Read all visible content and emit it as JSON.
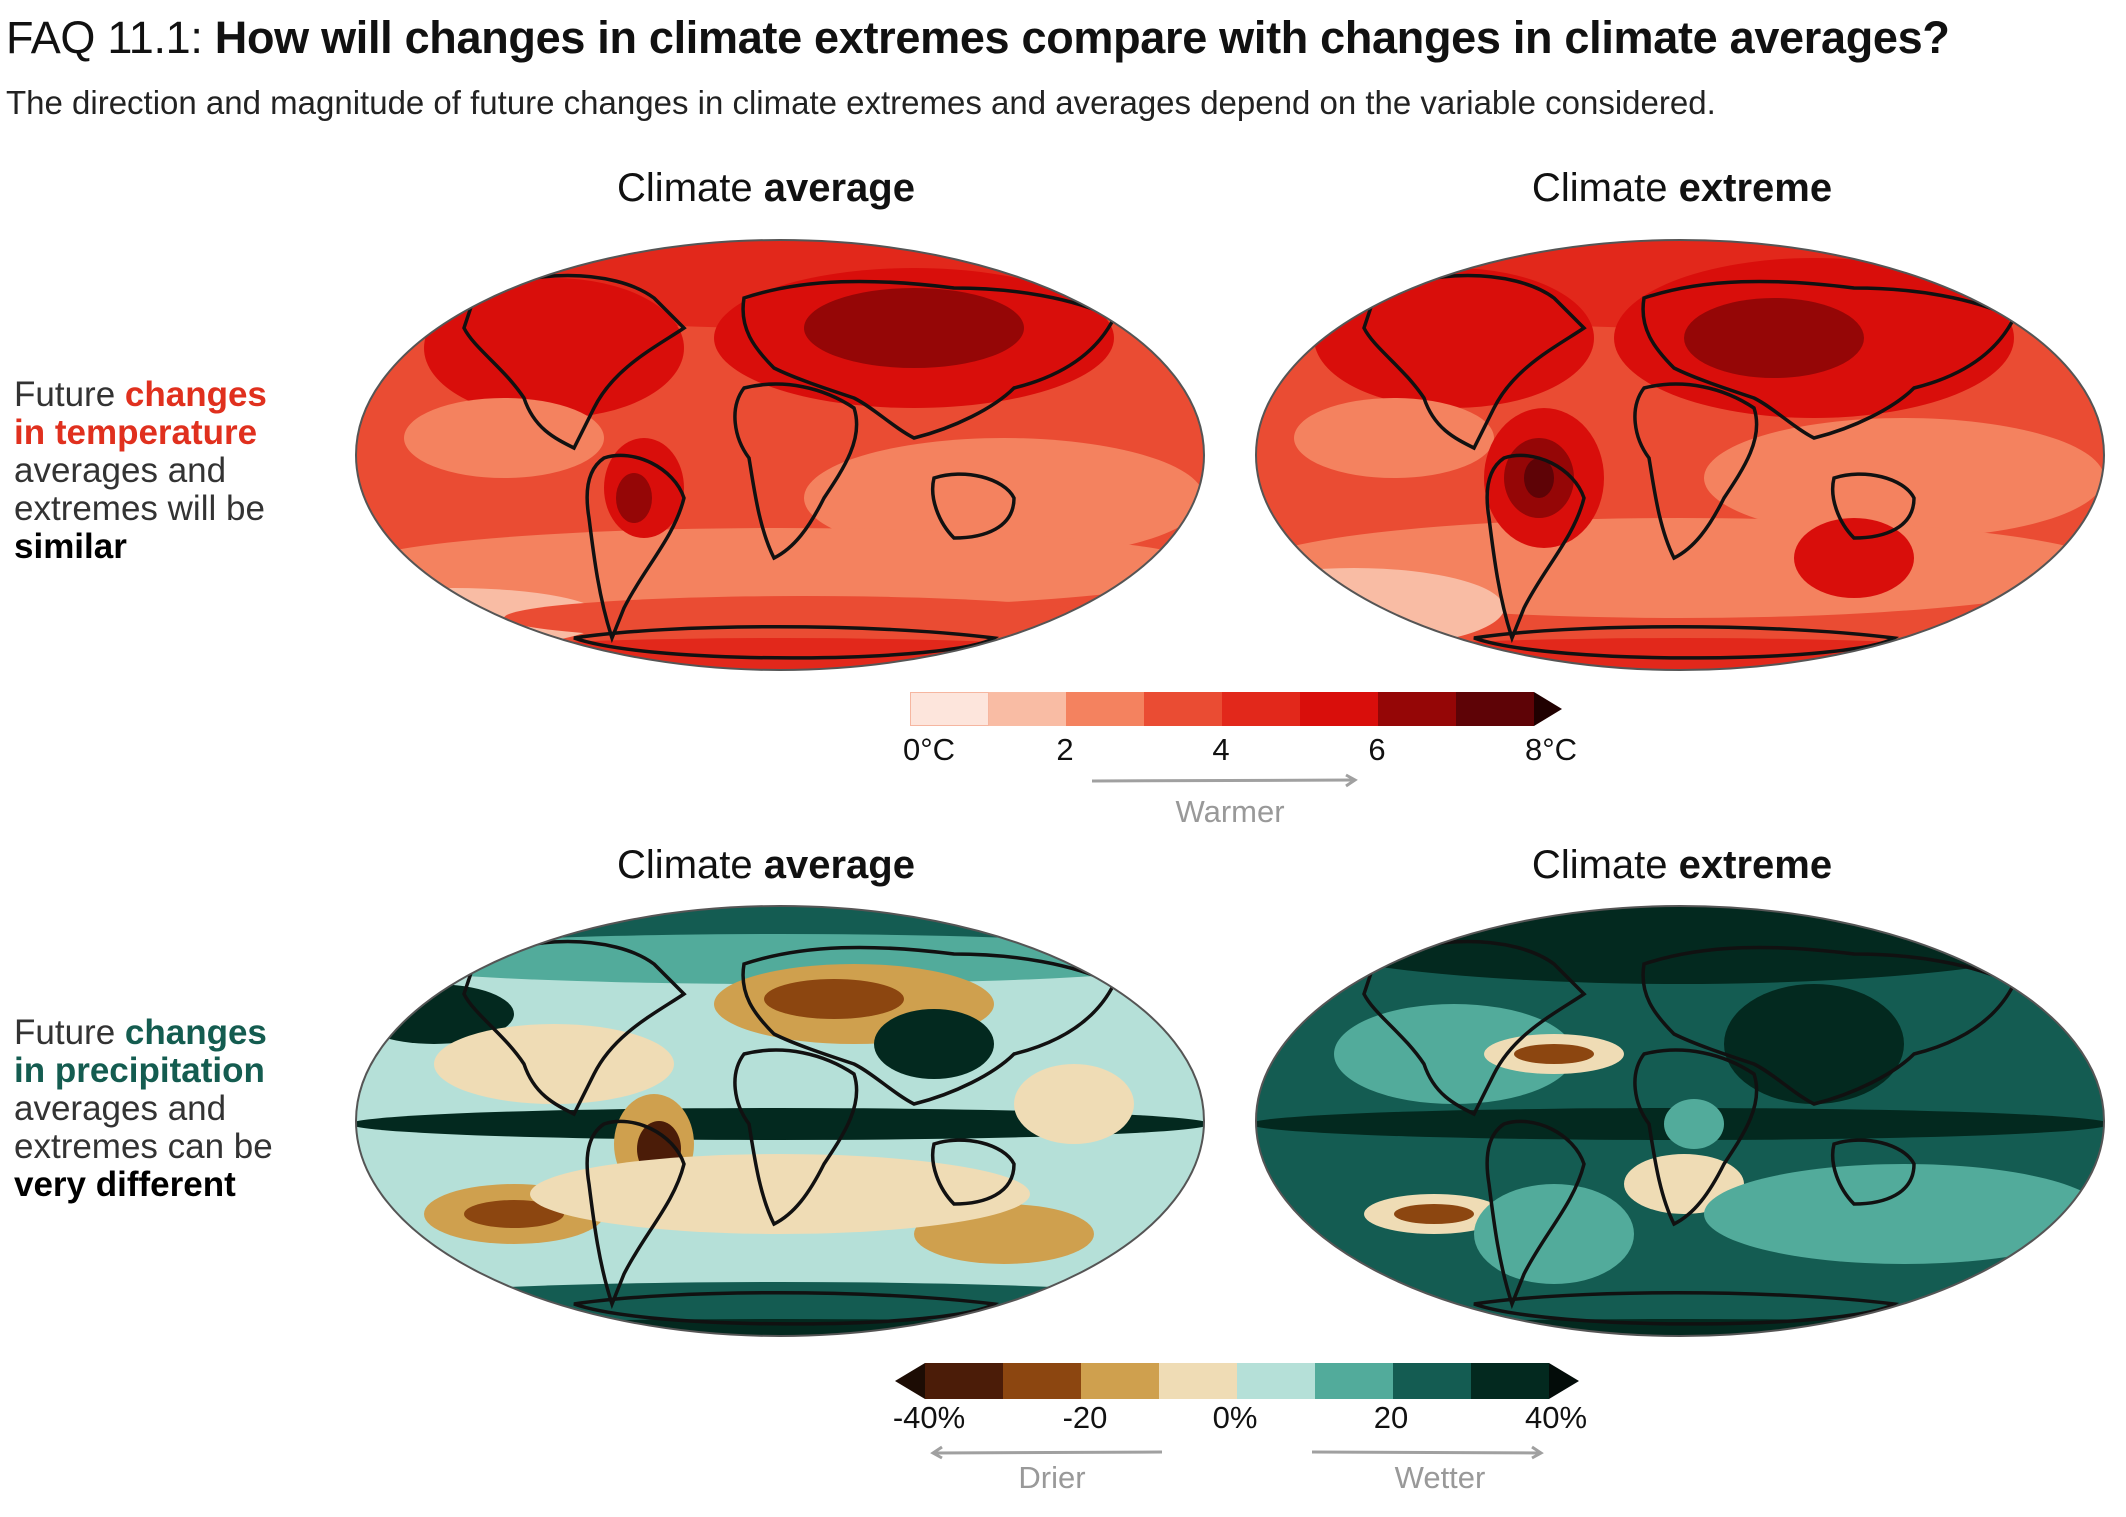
{
  "header": {
    "prefix": "FAQ 11.1:",
    "question": "How will changes in climate extremes compare with changes in climate averages?",
    "subtitle": "The direction and magnitude of future changes in climate extremes and averages depend on the variable considered."
  },
  "columns": {
    "average": {
      "plain": "Climate ",
      "bold": "average"
    },
    "extreme": {
      "plain": "Climate ",
      "bold": "extreme"
    }
  },
  "rows": {
    "temperature": {
      "l1": "Future ",
      "l1_hl": "changes",
      "l2_hl": "in temperature",
      "l3": "averages and",
      "l4": "extremes will be",
      "l5": "similar",
      "accent": "#e0301e"
    },
    "precipitation": {
      "l1": "Future ",
      "l1_hl": "changes",
      "l2_hl": "in precipitation",
      "l3": "averages and",
      "l4": "extremes can be",
      "l5": "very different",
      "accent": "#145c50"
    }
  },
  "temperature_colorbar": {
    "colors": [
      "#fde5dc",
      "#f9bca4",
      "#f4825f",
      "#ea4c33",
      "#e2281b",
      "#d90e0b",
      "#950606",
      "#5e0306"
    ],
    "over_color": "#200000",
    "ticks": [
      "0°C",
      "2",
      "4",
      "6",
      "8°C"
    ],
    "direction_label": "Warmer"
  },
  "precipitation_colorbar": {
    "colors": [
      "#4b1c08",
      "#8c4610",
      "#cfa04e",
      "#efdcb5",
      "#b5e0d8",
      "#52ab9b",
      "#145c52",
      "#03291f"
    ],
    "under_color": "#1c0c04",
    "over_color": "#030c09",
    "ticks": [
      "-40%",
      "-20",
      "0%",
      "20",
      "40%"
    ],
    "direction_left": "Drier",
    "direction_right": "Wetter"
  }
}
